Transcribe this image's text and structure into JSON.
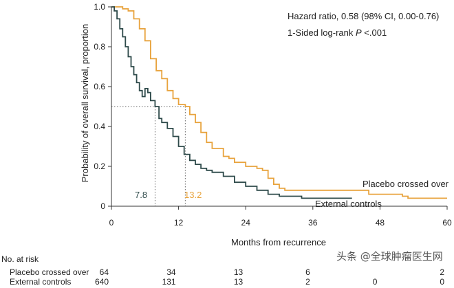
{
  "chart_data": {
    "type": "line",
    "step": true,
    "xlabel": "Months from recurrence",
    "ylabel": "Probability of overall survival, proportion",
    "xlim": [
      0,
      60
    ],
    "ylim": [
      0,
      1
    ],
    "x_ticks": [
      "0",
      "12",
      "24",
      "36",
      "48",
      "60"
    ],
    "y_ticks": [
      "0",
      "0.2",
      "0.4",
      "0.6",
      "0.8",
      "1.0"
    ],
    "annotations": {
      "hazard_ratio": "Hazard ratio, 0.58 (98% CI, 0.00-0.76)",
      "log_rank_prefix": "1-Sided log-rank ",
      "log_rank_p": "P",
      "log_rank_suffix": " <.001"
    },
    "series": [
      {
        "name": "Placebo crossed over",
        "color": "#E8A33D",
        "median": 13.2,
        "median_label": "13.2",
        "points": [
          [
            0,
            1.0
          ],
          [
            1,
            1.0
          ],
          [
            2,
            0.99
          ],
          [
            3,
            0.98
          ],
          [
            4,
            0.94
          ],
          [
            5,
            0.89
          ],
          [
            6,
            0.83
          ],
          [
            7,
            0.74
          ],
          [
            8,
            0.68
          ],
          [
            9,
            0.64
          ],
          [
            10,
            0.58
          ],
          [
            11,
            0.54
          ],
          [
            12,
            0.51
          ],
          [
            13.2,
            0.5
          ],
          [
            14,
            0.46
          ],
          [
            15,
            0.42
          ],
          [
            16,
            0.37
          ],
          [
            17,
            0.32
          ],
          [
            18,
            0.29
          ],
          [
            20,
            0.25
          ],
          [
            21,
            0.24
          ],
          [
            22,
            0.22
          ],
          [
            24,
            0.2
          ],
          [
            26,
            0.19
          ],
          [
            27,
            0.18
          ],
          [
            28,
            0.14
          ],
          [
            29,
            0.11
          ],
          [
            30,
            0.09
          ],
          [
            31,
            0.08
          ],
          [
            36,
            0.08
          ],
          [
            42,
            0.08
          ],
          [
            46,
            0.06
          ],
          [
            52,
            0.05
          ],
          [
            53,
            0.04
          ],
          [
            60,
            0.04
          ]
        ]
      },
      {
        "name": "External controls",
        "color": "#2E4A4A",
        "median": 7.8,
        "median_label": "7.8",
        "points": [
          [
            0,
            1.0
          ],
          [
            0.5,
            0.98
          ],
          [
            1,
            0.94
          ],
          [
            1.5,
            0.89
          ],
          [
            2,
            0.85
          ],
          [
            2.5,
            0.8
          ],
          [
            3,
            0.75
          ],
          [
            3.5,
            0.7
          ],
          [
            4,
            0.66
          ],
          [
            4.5,
            0.62
          ],
          [
            5,
            0.58
          ],
          [
            5.5,
            0.55
          ],
          [
            6,
            0.59
          ],
          [
            6.5,
            0.57
          ],
          [
            7,
            0.53
          ],
          [
            7.8,
            0.5
          ],
          [
            8.5,
            0.44
          ],
          [
            9,
            0.42
          ],
          [
            10,
            0.39
          ],
          [
            11,
            0.35
          ],
          [
            12,
            0.3
          ],
          [
            13,
            0.26
          ],
          [
            14,
            0.23
          ],
          [
            15,
            0.21
          ],
          [
            16,
            0.19
          ],
          [
            17,
            0.18
          ],
          [
            18,
            0.17
          ],
          [
            20,
            0.15
          ],
          [
            22,
            0.12
          ],
          [
            24,
            0.1
          ],
          [
            26,
            0.08
          ],
          [
            28,
            0.06
          ],
          [
            30,
            0.05
          ],
          [
            34,
            0.04
          ],
          [
            40,
            0.04
          ],
          [
            43,
            0.04
          ]
        ]
      }
    ],
    "risk_table": {
      "title": "No. at risk",
      "times": [
        0,
        12,
        24,
        36,
        48,
        60
      ],
      "rows": [
        {
          "label": "Placebo crossed over",
          "values": [
            "64",
            "34",
            "13",
            "6",
            "",
            "2"
          ]
        },
        {
          "label": "External controls",
          "values": [
            "640",
            "131",
            "13",
            "2",
            "0",
            "0"
          ]
        }
      ]
    }
  },
  "watermark": "头条 @全球肿瘤医生网"
}
